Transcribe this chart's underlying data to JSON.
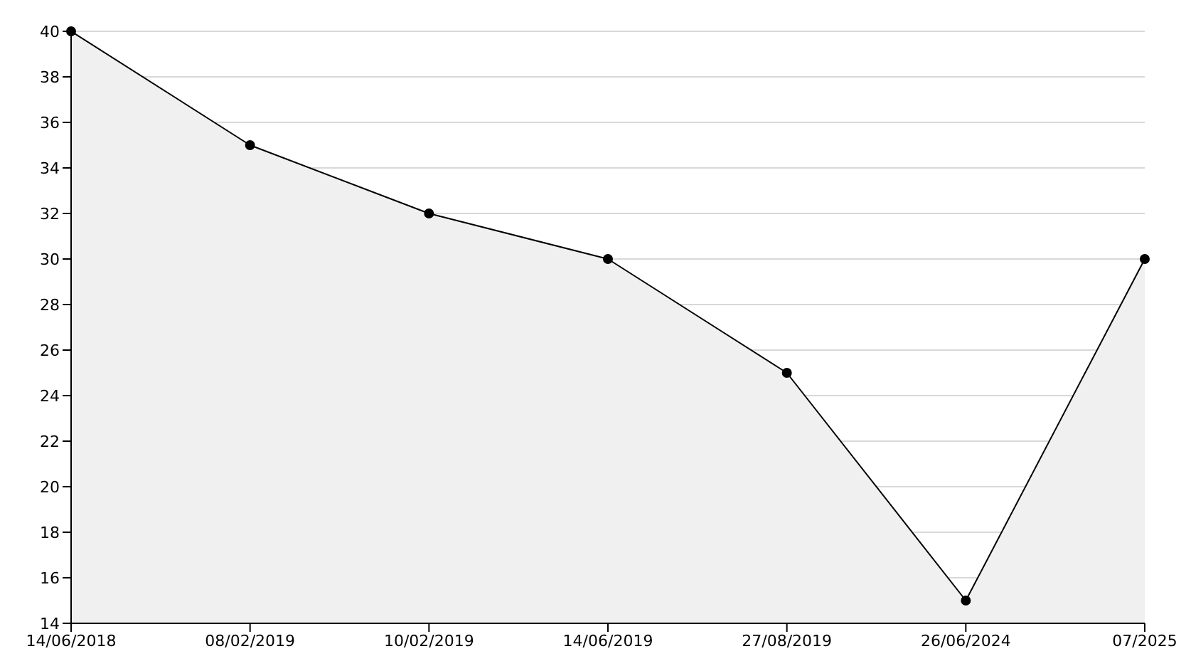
{
  "chart_data": {
    "type": "area",
    "categories": [
      "14/06/2018",
      "08/02/2019",
      "10/02/2019",
      "14/06/2019",
      "27/08/2019",
      "26/06/2024",
      "07/2025"
    ],
    "series": [
      {
        "color": "#000000",
        "values": [
          40,
          35,
          32,
          30,
          25,
          15,
          30
        ]
      }
    ],
    "ylim": [
      14,
      40
    ],
    "yticks": [
      14,
      16,
      18,
      20,
      22,
      24,
      26,
      28,
      30,
      32,
      34,
      36,
      38,
      40
    ],
    "grid": "y",
    "marker": "circle",
    "line_style": "solid"
  }
}
